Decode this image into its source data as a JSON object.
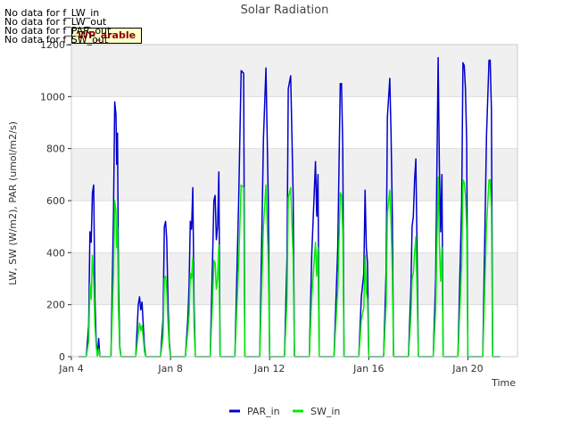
{
  "chart_data": {
    "type": "line",
    "title": "Solar Radiation",
    "xlabel": "Time",
    "ylabel": "LW, SW (W/m2), PAR (umol/m2/s)",
    "xlim": [
      4.0,
      22.0
    ],
    "ylim": [
      0,
      1200
    ],
    "yticks": [
      0,
      200,
      400,
      600,
      800,
      1000,
      1200
    ],
    "xticks": [
      {
        "x": 4,
        "label": "Jan 4"
      },
      {
        "x": 8,
        "label": "Jan 8"
      },
      {
        "x": 12,
        "label": "Jan 12"
      },
      {
        "x": 16,
        "label": "Jan 16"
      },
      {
        "x": 20,
        "label": "Jan 20"
      }
    ],
    "grid": "horizontal bands",
    "legend_position": "bottom",
    "series": [
      {
        "name": "PAR_in",
        "color": "#0000cc",
        "x": [
          4.3,
          4.6,
          4.7,
          4.75,
          4.8,
          4.85,
          4.9,
          4.95,
          5.0,
          5.05,
          5.1,
          5.15,
          5.6,
          5.7,
          5.75,
          5.8,
          5.83,
          5.86,
          5.9,
          5.95,
          6.0,
          6.3,
          6.6,
          6.7,
          6.75,
          6.8,
          6.85,
          6.9,
          6.95,
          7.0,
          7.2,
          7.6,
          7.7,
          7.75,
          7.8,
          7.85,
          7.9,
          7.95,
          8.0,
          8.3,
          8.6,
          8.7,
          8.75,
          8.8,
          8.85,
          8.9,
          8.95,
          9.0,
          9.3,
          9.6,
          9.7,
          9.75,
          9.8,
          9.85,
          9.9,
          9.95,
          10.0,
          10.3,
          10.6,
          10.75,
          10.85,
          10.95,
          11.0,
          11.3,
          11.6,
          11.75,
          11.85,
          11.9,
          11.95,
          12.0,
          12.3,
          12.6,
          12.7,
          12.75,
          12.85,
          12.95,
          13.0,
          13.3,
          13.6,
          13.7,
          13.8,
          13.85,
          13.9,
          13.95,
          14.0,
          14.3,
          14.6,
          14.75,
          14.85,
          14.9,
          14.95,
          15.0,
          15.3,
          15.6,
          15.7,
          15.8,
          15.85,
          15.9,
          15.95,
          16.0,
          16.3,
          16.6,
          16.7,
          16.75,
          16.85,
          16.9,
          16.95,
          17.0,
          17.3,
          17.6,
          17.7,
          17.75,
          17.8,
          17.85,
          17.9,
          17.95,
          18.0,
          18.3,
          18.6,
          18.7,
          18.8,
          18.85,
          18.9,
          18.95,
          19.0,
          19.3,
          19.6,
          19.75,
          19.8,
          19.85,
          19.9,
          19.95,
          20.0,
          20.3,
          20.6,
          20.75,
          20.85,
          20.9,
          20.95,
          21.0,
          21.3
        ],
        "y": [
          0,
          0,
          120,
          480,
          440,
          630,
          660,
          220,
          60,
          0,
          70,
          0,
          0,
          550,
          980,
          930,
          740,
          860,
          300,
          40,
          0,
          0,
          0,
          200,
          230,
          180,
          210,
          120,
          40,
          0,
          0,
          0,
          150,
          500,
          520,
          450,
          210,
          60,
          0,
          0,
          0,
          150,
          270,
          520,
          490,
          650,
          200,
          0,
          0,
          0,
          380,
          600,
          620,
          450,
          500,
          710,
          0,
          0,
          0,
          600,
          1100,
          1090,
          0,
          0,
          0,
          840,
          1110,
          860,
          580,
          0,
          0,
          0,
          380,
          1030,
          1080,
          620,
          0,
          0,
          0,
          390,
          630,
          750,
          540,
          700,
          0,
          0,
          0,
          420,
          1050,
          1050,
          800,
          0,
          0,
          0,
          230,
          320,
          640,
          420,
          360,
          0,
          0,
          0,
          330,
          920,
          1070,
          860,
          550,
          0,
          0,
          0,
          270,
          500,
          540,
          680,
          760,
          400,
          0,
          0,
          0,
          300,
          1150,
          720,
          480,
          700,
          0,
          0,
          0,
          600,
          1130,
          1120,
          1030,
          820,
          0,
          0,
          0,
          850,
          1140,
          1140,
          950,
          0,
          0
        ]
      },
      {
        "name": "SW_in",
        "color": "#00ee00",
        "x": [
          4.3,
          4.6,
          4.7,
          4.75,
          4.8,
          4.85,
          4.9,
          4.95,
          5.0,
          5.05,
          5.1,
          5.15,
          5.6,
          5.7,
          5.75,
          5.8,
          5.83,
          5.86,
          5.9,
          5.95,
          6.0,
          6.3,
          6.6,
          6.7,
          6.75,
          6.8,
          6.85,
          6.9,
          6.95,
          7.0,
          7.2,
          7.6,
          7.7,
          7.75,
          7.8,
          7.85,
          7.9,
          7.95,
          8.0,
          8.3,
          8.6,
          8.7,
          8.75,
          8.8,
          8.85,
          8.9,
          8.95,
          9.0,
          9.3,
          9.6,
          9.7,
          9.75,
          9.8,
          9.85,
          9.9,
          9.95,
          10.0,
          10.3,
          10.6,
          10.75,
          10.85,
          10.95,
          11.0,
          11.3,
          11.6,
          11.75,
          11.85,
          11.9,
          11.95,
          12.0,
          12.3,
          12.6,
          12.7,
          12.75,
          12.85,
          12.95,
          13.0,
          13.3,
          13.6,
          13.7,
          13.8,
          13.85,
          13.9,
          13.95,
          14.0,
          14.3,
          14.6,
          14.75,
          14.85,
          14.9,
          14.95,
          15.0,
          15.3,
          15.6,
          15.7,
          15.8,
          15.85,
          15.9,
          15.95,
          16.0,
          16.3,
          16.6,
          16.7,
          16.75,
          16.85,
          16.9,
          16.95,
          17.0,
          17.3,
          17.6,
          17.7,
          17.75,
          17.8,
          17.85,
          17.9,
          17.95,
          18.0,
          18.3,
          18.6,
          18.7,
          18.8,
          18.85,
          18.9,
          18.95,
          19.0,
          19.3,
          19.6,
          19.75,
          19.8,
          19.85,
          19.9,
          19.95,
          20.0,
          20.3,
          20.6,
          20.75,
          20.85,
          20.9,
          20.95,
          21.0,
          21.3
        ],
        "y": [
          0,
          0,
          60,
          280,
          220,
          390,
          300,
          120,
          40,
          0,
          30,
          0,
          0,
          320,
          600,
          560,
          420,
          500,
          180,
          30,
          0,
          0,
          0,
          90,
          130,
          100,
          120,
          70,
          20,
          0,
          0,
          0,
          80,
          300,
          310,
          260,
          130,
          40,
          0,
          0,
          0,
          100,
          160,
          320,
          300,
          380,
          120,
          0,
          0,
          0,
          220,
          370,
          360,
          260,
          300,
          430,
          0,
          0,
          0,
          360,
          660,
          650,
          0,
          0,
          0,
          500,
          660,
          520,
          350,
          0,
          0,
          0,
          220,
          610,
          650,
          380,
          0,
          0,
          0,
          230,
          370,
          440,
          310,
          420,
          0,
          0,
          0,
          260,
          630,
          620,
          480,
          0,
          0,
          0,
          140,
          190,
          390,
          250,
          220,
          0,
          0,
          0,
          200,
          550,
          640,
          520,
          330,
          0,
          0,
          0,
          160,
          300,
          320,
          400,
          460,
          240,
          0,
          0,
          0,
          180,
          690,
          430,
          290,
          420,
          0,
          0,
          0,
          360,
          680,
          670,
          620,
          490,
          0,
          0,
          0,
          500,
          680,
          680,
          570,
          0,
          0
        ]
      }
    ]
  },
  "no_data_messages": [
    "No data for f_LW_in",
    "No data for f_LW_out",
    "No data for f_PAR_out",
    "No data for f_SW_out"
  ],
  "badge_text": "WP_arable"
}
